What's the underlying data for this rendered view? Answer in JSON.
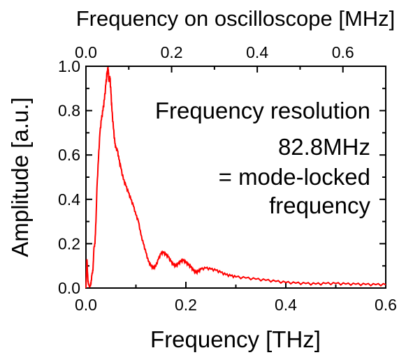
{
  "chart_data": {
    "type": "line",
    "title": "",
    "xlabel": "Frequency [THz]",
    "ylabel": "Amplitude [a.u.]",
    "x2label": "Frequency on oscilloscope [MHz]",
    "xlim": [
      0.0,
      0.6
    ],
    "ylim": [
      0.0,
      1.0
    ],
    "x2lim": [
      0.0,
      0.7
    ],
    "xticks": [
      "0.0",
      "0.2",
      "0.4",
      "0.6"
    ],
    "yticks": [
      "0.0",
      "0.2",
      "0.4",
      "0.6",
      "0.8",
      "1.0"
    ],
    "x2ticks": [
      "0.0",
      "0.2",
      "0.4",
      "0.6"
    ],
    "grid": false,
    "line_color": "#ff0000",
    "annotation": [
      "Frequency resolution",
      "82.8MHz",
      "= mode-locked",
      "frequency"
    ],
    "series": [
      {
        "x": [
          0.0,
          0.002,
          0.004,
          0.006,
          0.008,
          0.01,
          0.012,
          0.014,
          0.016,
          0.018,
          0.02,
          0.022,
          0.025,
          0.028,
          0.031,
          0.034,
          0.037,
          0.04,
          0.042,
          0.044,
          0.045,
          0.046,
          0.048,
          0.05,
          0.052,
          0.055,
          0.058,
          0.06,
          0.063,
          0.066,
          0.07,
          0.075,
          0.08,
          0.085,
          0.09,
          0.095,
          0.1,
          0.105,
          0.11,
          0.115,
          0.12,
          0.125,
          0.13,
          0.135,
          0.14,
          0.145,
          0.15,
          0.155,
          0.16,
          0.165,
          0.17,
          0.175,
          0.18,
          0.185,
          0.19,
          0.195,
          0.2,
          0.205,
          0.21,
          0.215,
          0.22,
          0.225,
          0.23,
          0.24,
          0.25,
          0.26,
          0.27,
          0.28,
          0.29,
          0.3,
          0.32,
          0.34,
          0.36,
          0.38,
          0.4,
          0.42,
          0.44,
          0.46,
          0.48,
          0.5,
          0.52,
          0.54,
          0.56,
          0.58,
          0.6
        ],
        "y": [
          0.0,
          0.13,
          0.03,
          0.01,
          0.005,
          0.02,
          0.06,
          0.08,
          0.18,
          0.2,
          0.3,
          0.45,
          0.58,
          0.7,
          0.76,
          0.8,
          0.85,
          0.92,
          0.96,
          0.99,
          0.97,
          0.93,
          0.95,
          0.88,
          0.8,
          0.72,
          0.65,
          0.63,
          0.62,
          0.58,
          0.54,
          0.49,
          0.46,
          0.43,
          0.4,
          0.37,
          0.33,
          0.3,
          0.24,
          0.2,
          0.16,
          0.12,
          0.1,
          0.09,
          0.1,
          0.13,
          0.155,
          0.16,
          0.15,
          0.14,
          0.12,
          0.105,
          0.1,
          0.11,
          0.12,
          0.125,
          0.115,
          0.105,
          0.095,
          0.08,
          0.07,
          0.075,
          0.085,
          0.09,
          0.085,
          0.08,
          0.07,
          0.06,
          0.055,
          0.05,
          0.045,
          0.04,
          0.035,
          0.03,
          0.025,
          0.022,
          0.02,
          0.018,
          0.02,
          0.02,
          0.018,
          0.017,
          0.016,
          0.015,
          0.015
        ]
      }
    ]
  }
}
